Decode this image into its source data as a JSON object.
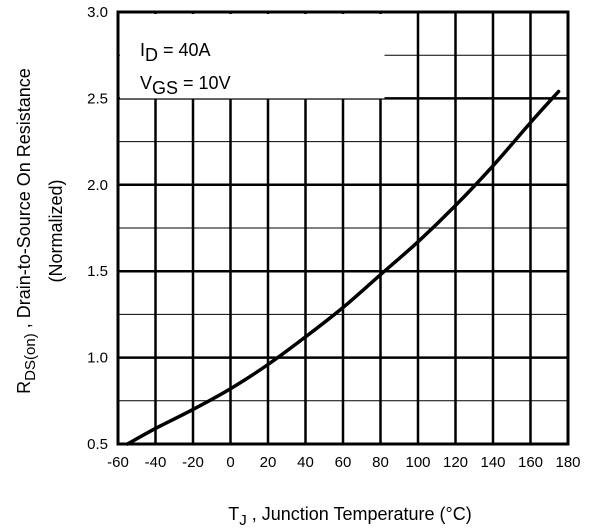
{
  "chart_data": {
    "type": "line",
    "title": "",
    "xlabel": {
      "main": "T",
      "sub": "J",
      "rest": " , Junction Temperature (°C)"
    },
    "ylabel": {
      "main": "R",
      "sub": "DS(on)",
      "rest": " , Drain-to-Source On Resistance",
      "line2": "(Normalized)"
    },
    "xlim": [
      -60,
      180
    ],
    "ylim": [
      0.5,
      3.0
    ],
    "x_ticks": [
      -60,
      -40,
      -20,
      0,
      20,
      40,
      60,
      80,
      100,
      120,
      140,
      160,
      180
    ],
    "x_tick_labels": [
      "-60",
      "-40",
      "-20",
      "0",
      "20",
      "40",
      "60",
      "80",
      "100",
      "120",
      "140",
      "160",
      "180"
    ],
    "y_major_ticks": [
      0.5,
      1.0,
      1.5,
      2.0,
      2.5,
      3.0
    ],
    "y_tick_labels": [
      "0.5",
      "1.0",
      "1.5",
      "2.0",
      "2.5",
      "3.0"
    ],
    "y_minor_ticks": [
      0.75,
      1.25,
      1.75,
      2.25,
      2.75
    ],
    "grid": true,
    "annotations": [
      {
        "main": "I",
        "sub": "D",
        "rest": " = 40A"
      },
      {
        "main": "V",
        "sub": "GS",
        "rest": " = 10V"
      }
    ],
    "series": [
      {
        "color": "#000000",
        "x": [
          -55,
          -40,
          -20,
          0,
          20,
          40,
          60,
          80,
          100,
          120,
          140,
          160,
          175
        ],
        "y": [
          0.5,
          0.59,
          0.7,
          0.82,
          0.96,
          1.12,
          1.29,
          1.48,
          1.67,
          1.88,
          2.11,
          2.36,
          2.54
        ]
      }
    ]
  }
}
